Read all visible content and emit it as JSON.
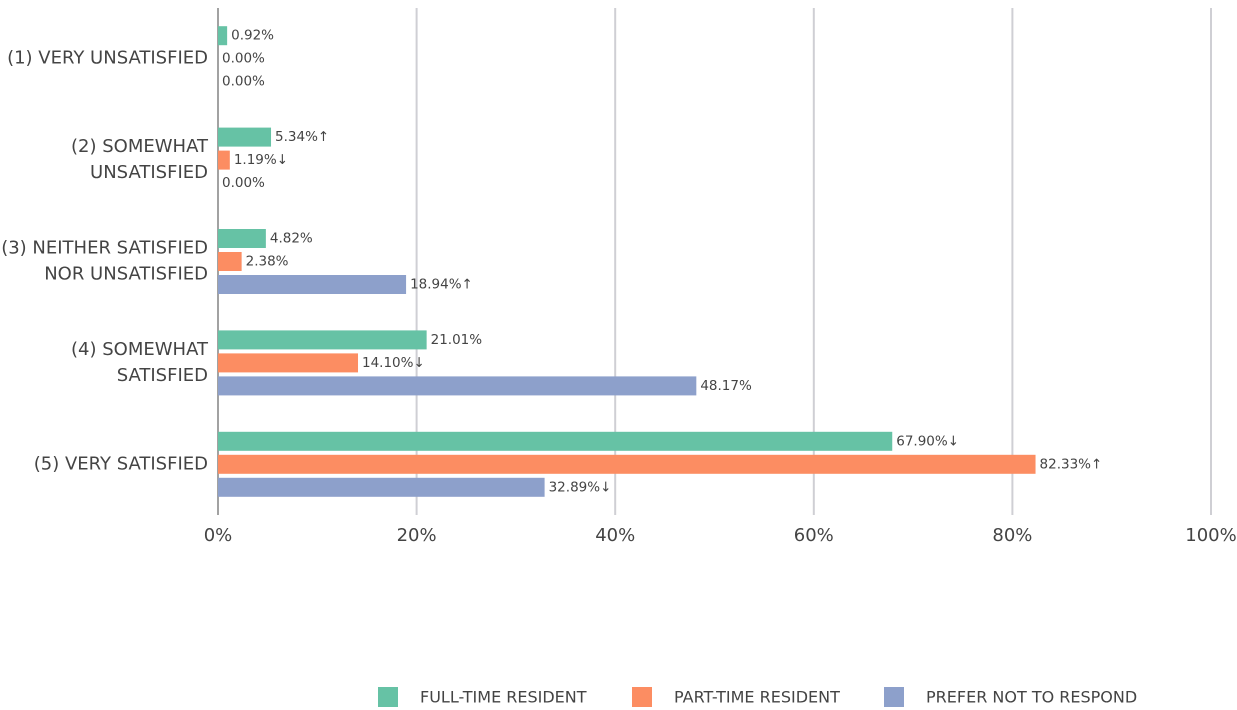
{
  "chart_data": {
    "type": "hbar",
    "categories": [
      "(1) VERY UNSATISFIED",
      "(2) SOMEWHAT\nUNSATISFIED",
      "(3) NEITHER SATISFIED\nNOR UNSATISFIED",
      "(4) SOMEWHAT\nSATISFIED",
      "(5) VERY SATISFIED"
    ],
    "series": [
      {
        "name": "FULL-TIME RESIDENT",
        "color": "#66c2a5",
        "values": [
          0.92,
          5.34,
          4.82,
          21.01,
          67.9
        ],
        "value_labels": [
          "0.92%",
          "5.34%↑",
          "4.82%",
          "21.01%",
          "67.90%↓"
        ],
        "value_label_colors": [
          "#555555",
          "#3a3ad6",
          "#555555",
          "#555555",
          "#e8262a"
        ]
      },
      {
        "name": "PART-TIME RESIDENT",
        "color": "#fc8d62",
        "values": [
          0,
          1.19,
          2.38,
          14.1,
          82.33
        ],
        "value_labels": [
          "0.00%",
          "1.19%↓",
          "2.38%",
          "14.10%↓",
          "82.33%↑"
        ],
        "value_label_colors": [
          "#555555",
          "#e8262a",
          "#555555",
          "#e8262a",
          "#3a3ad6"
        ]
      },
      {
        "name": "PREFER NOT TO RESPOND",
        "color": "#8da0cb",
        "values": [
          0,
          0,
          18.94,
          48.17,
          32.89
        ],
        "value_labels": [
          "0.00%",
          "0.00%",
          "18.94%↑",
          "48.17%",
          "32.89%↓"
        ],
        "value_label_colors": [
          "#555555",
          "#555555",
          "#3a3ad6",
          "#555555",
          "#e8262a"
        ]
      }
    ],
    "xlim": [
      0,
      100
    ],
    "xticks": [
      {
        "value": 0,
        "label": "0%"
      },
      {
        "value": 20,
        "label": "20%"
      },
      {
        "value": 40,
        "label": "40%"
      },
      {
        "value": 60,
        "label": "60%"
      },
      {
        "value": 80,
        "label": "80%"
      },
      {
        "value": 100,
        "label": "100%"
      }
    ],
    "grid": true,
    "legend": "bottom"
  }
}
